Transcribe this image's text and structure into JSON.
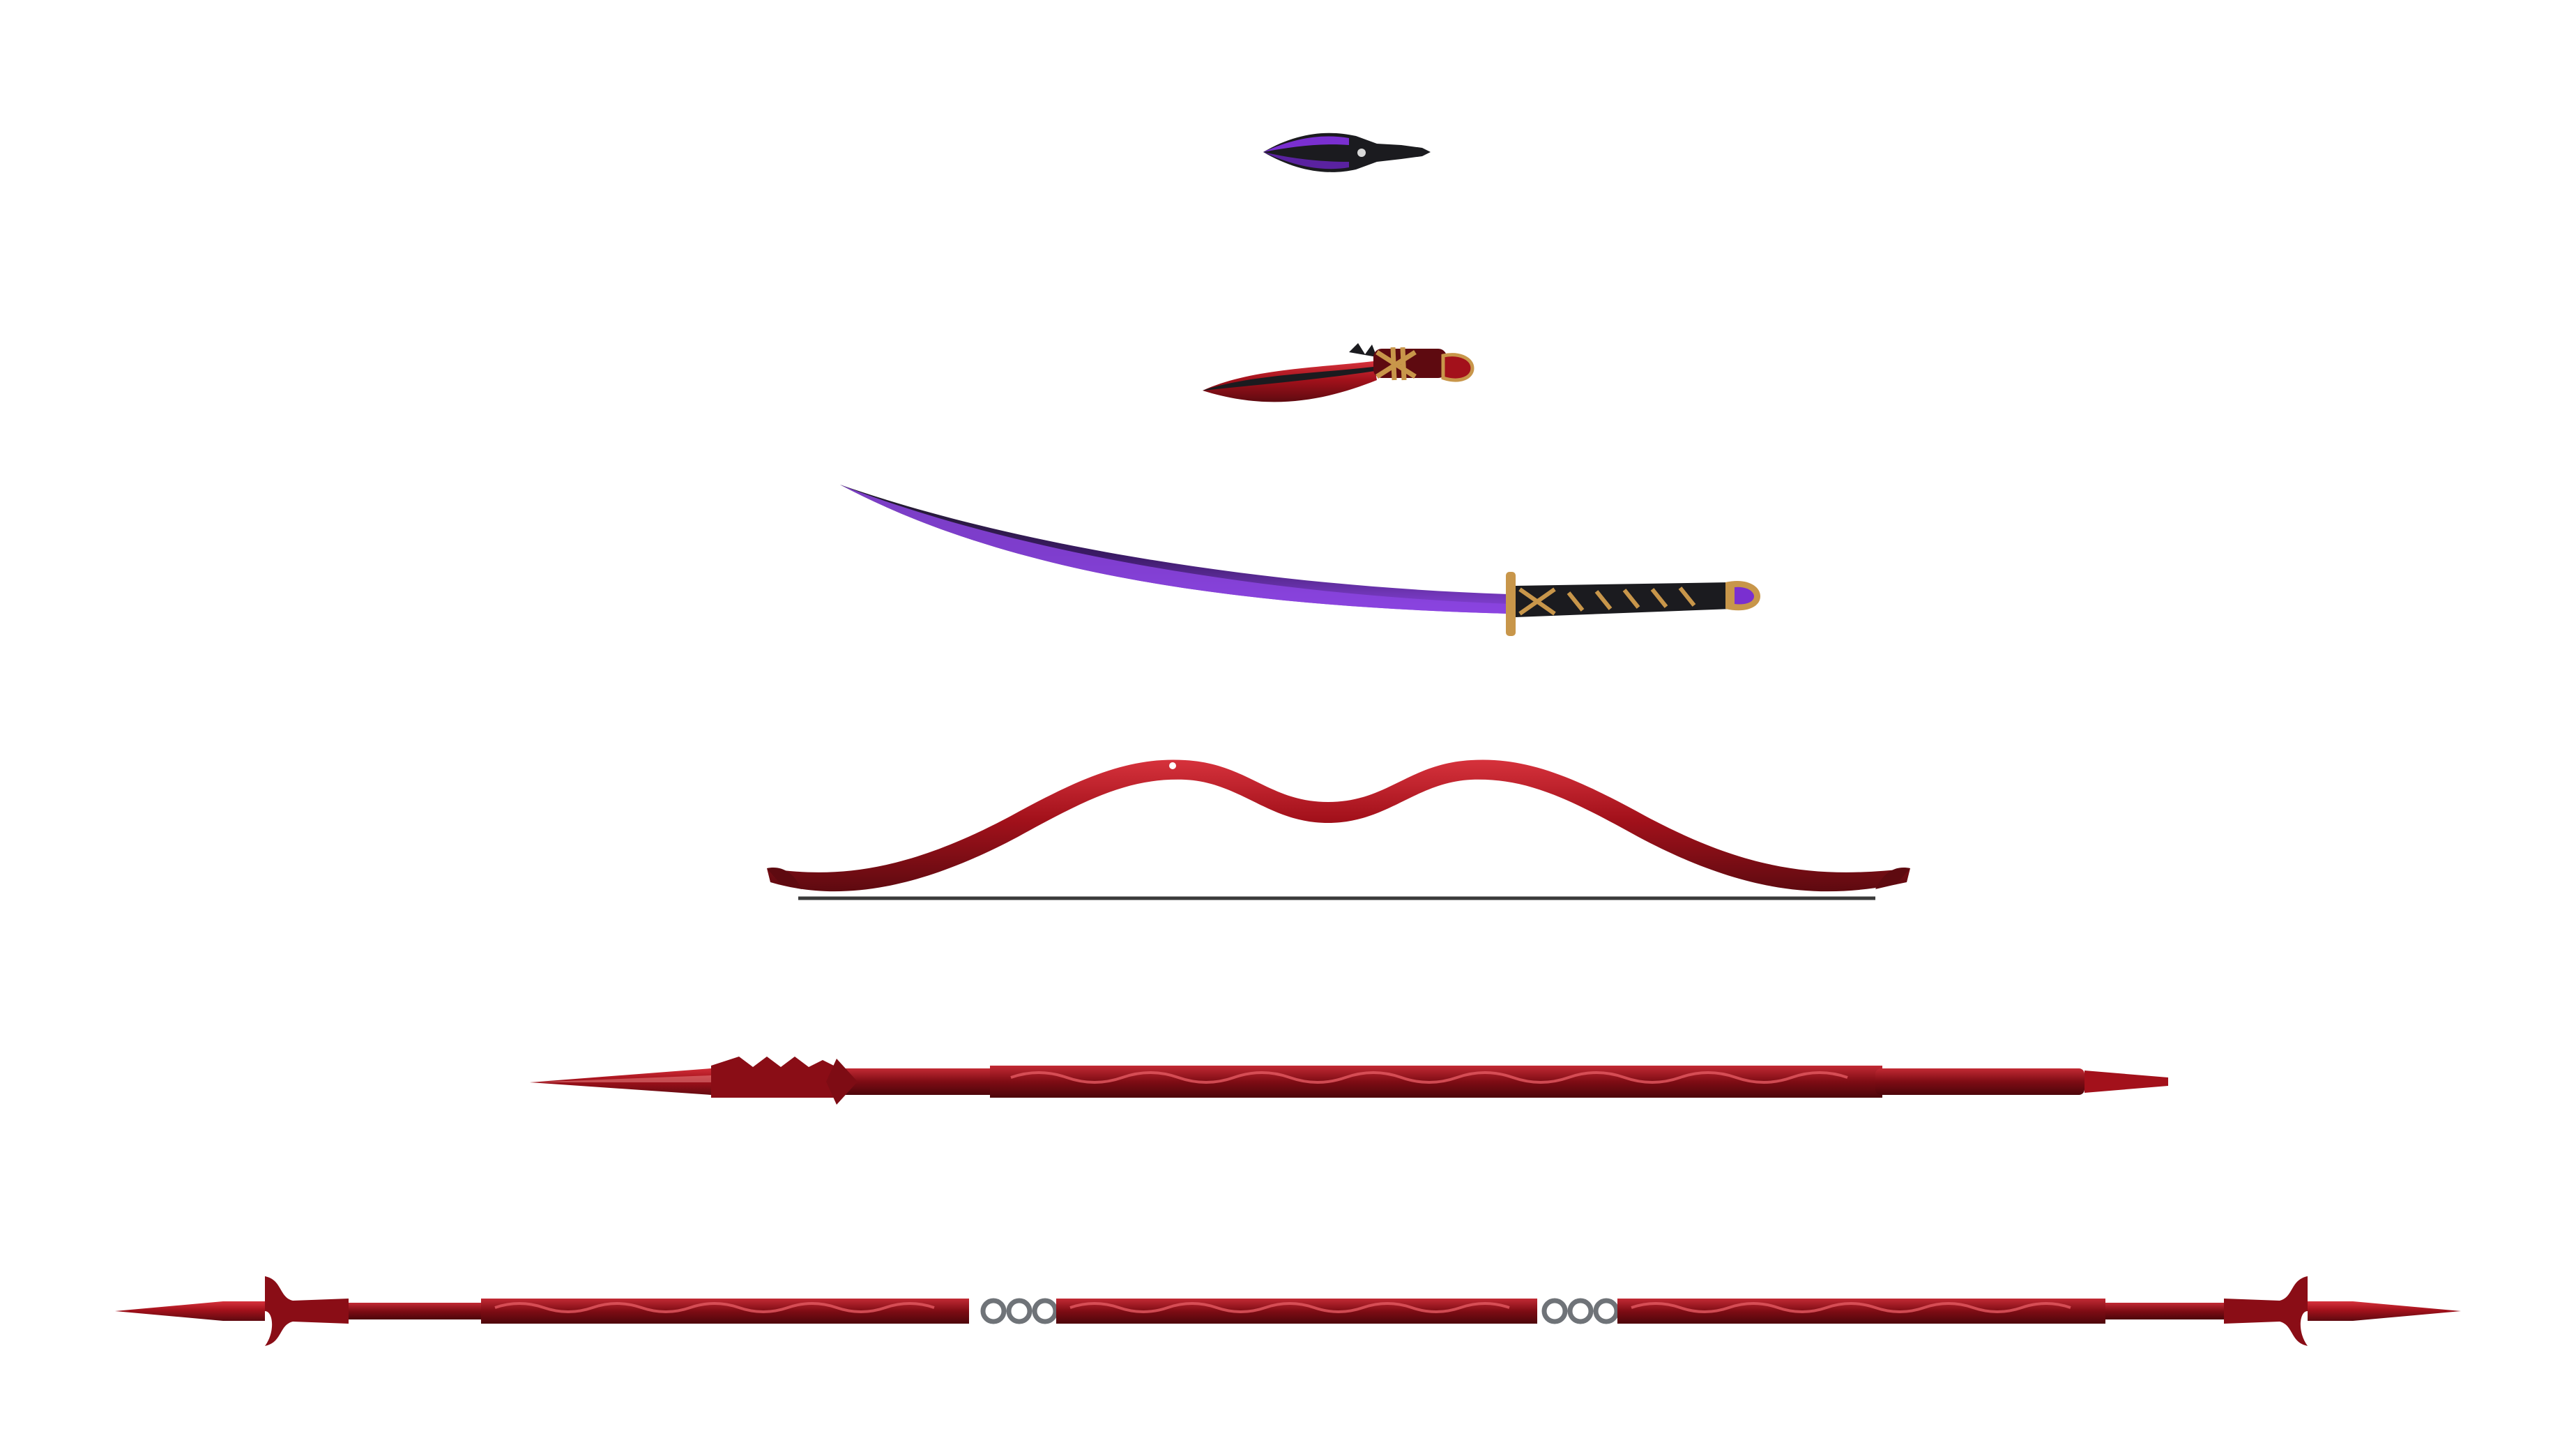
{
  "palette": {
    "background": "#ffffff",
    "crimson": "#a3111b",
    "crimson_light": "#d6323c",
    "crimson_dark": "#5e0a10",
    "purple": "#7a2fd0",
    "purple_dark": "#3b1a66",
    "black": "#1b1b1f",
    "steel": "#6f7378",
    "gold": "#c8964a"
  },
  "weapons": [
    {
      "id": "kunai",
      "icon": "kunai-icon"
    },
    {
      "id": "dagger",
      "icon": "curved-dagger-icon"
    },
    {
      "id": "katana",
      "icon": "katana-icon"
    },
    {
      "id": "bow",
      "icon": "recurve-bow-icon"
    },
    {
      "id": "spear",
      "icon": "spear-icon"
    },
    {
      "id": "chained-staff",
      "icon": "double-spear-staff-icon"
    }
  ]
}
